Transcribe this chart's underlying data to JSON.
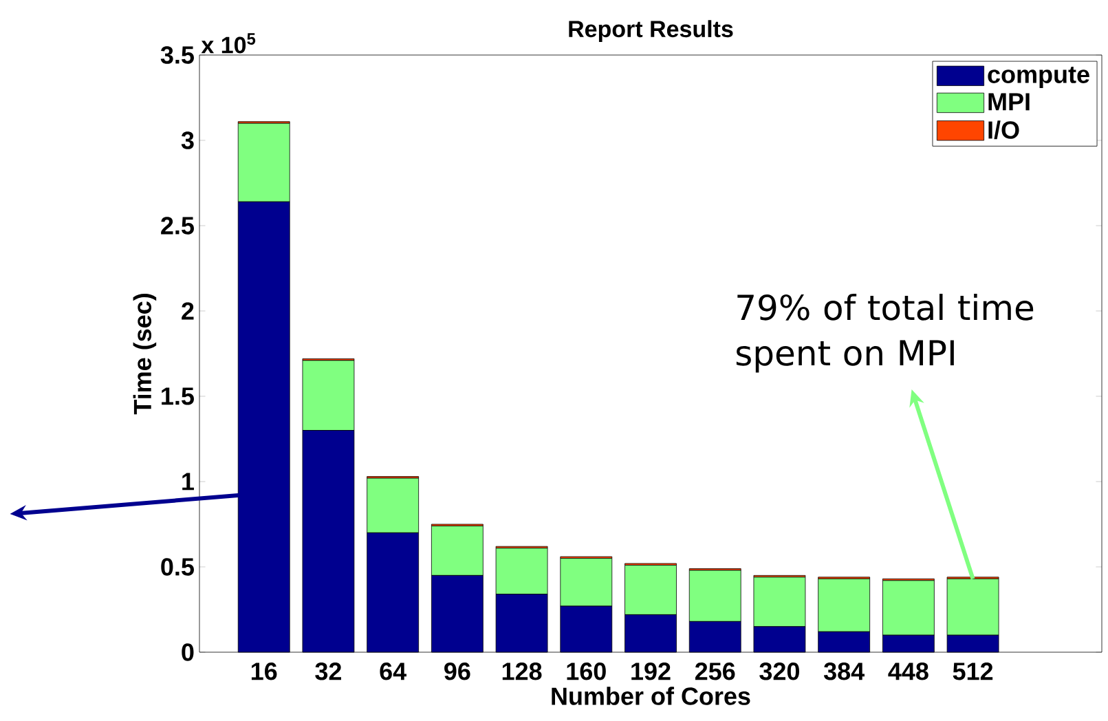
{
  "chart_data": {
    "type": "bar",
    "title": "Report Results",
    "xlabel": "Number of Cores",
    "ylabel": "Time (sec)",
    "categories": [
      "16",
      "32",
      "64",
      "96",
      "128",
      "160",
      "192",
      "256",
      "320",
      "384",
      "448",
      "512"
    ],
    "series": [
      {
        "name": "compute",
        "color": "#00008f",
        "values": [
          2.64,
          1.3,
          0.7,
          0.45,
          0.34,
          0.27,
          0.22,
          0.18,
          0.15,
          0.12,
          0.1,
          0.1
        ]
      },
      {
        "name": "MPI",
        "color": "#80ff80",
        "values": [
          0.46,
          0.41,
          0.32,
          0.29,
          0.27,
          0.28,
          0.29,
          0.3,
          0.29,
          0.31,
          0.32,
          0.33
        ]
      },
      {
        "name": "I/O",
        "color": "#ff4500",
        "values": [
          0.01,
          0.01,
          0.01,
          0.01,
          0.01,
          0.01,
          0.01,
          0.01,
          0.01,
          0.01,
          0.01,
          0.01
        ]
      }
    ],
    "stacked": true,
    "ylim": [
      0,
      3.5
    ],
    "yticks": [
      0,
      0.5,
      1,
      1.5,
      2,
      2.5,
      3,
      3.5
    ],
    "legend": "top right",
    "grid": false,
    "annotations": [
      "x 10$^{5}$",
      {
        "text": "79% of total time spent on MPI",
        "x": "512",
        "y": 0.43
      }
    ]
  }
}
